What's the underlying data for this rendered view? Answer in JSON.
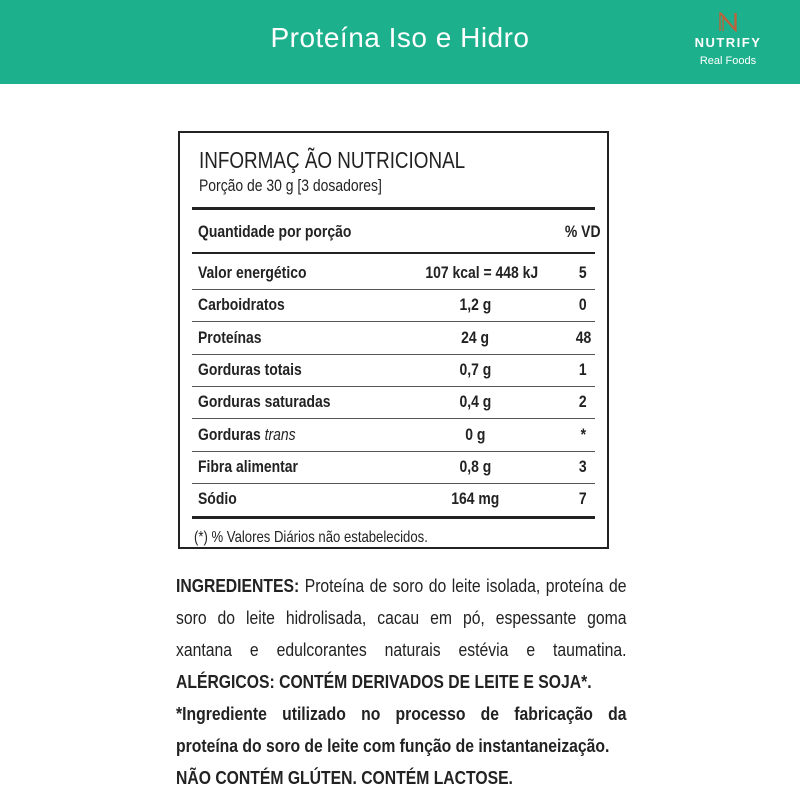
{
  "header": {
    "title": "Proteína Iso e Hidro",
    "brand": "NUTRIFY",
    "tagline": "Real Foods",
    "color": "#1db08c"
  },
  "table": {
    "title": "INFORMAÇ  ÃO NUTRICIONAL",
    "serving": "Porção de 30 g  [3 dosadores]",
    "col_header": "Quantidade por porção",
    "vd_header": "% VD",
    "rows": [
      {
        "label": "Valor energético",
        "amount": "107 kcal = 448 kJ",
        "vd": "5"
      },
      {
        "label": "Carboidratos",
        "amount": "1,2 g",
        "vd": "0"
      },
      {
        "label": "Proteínas",
        "amount": "24 g",
        "vd": "48"
      },
      {
        "label": "Gorduras totais",
        "amount": "0,7 g",
        "vd": "1"
      },
      {
        "label": "Gorduras saturadas",
        "amount": "0,4 g",
        "vd": "2"
      },
      {
        "label": "Gorduras",
        "label_italic": "trans",
        "amount": "0 g",
        "vd": "*"
      },
      {
        "label": "Fibra alimentar",
        "amount": "0,8 g",
        "vd": "3"
      },
      {
        "label": "Sódio",
        "amount": "164 mg",
        "vd": "7"
      }
    ],
    "footnote": "(*) % Valores Diários não estabelecidos."
  },
  "ingredients": {
    "label": "INGREDIENTES:",
    "text": " Proteína de soro do leite isolada, proteína de soro do leite hidrolisada, cacau em pó, espessante goma xantana e edulcorantes naturais estévia e taumatina. ",
    "allergens": "ALÉRGICOS: CONTÉM DERIVADOS DE LEITE E SOJA*.",
    "note": "*Ingrediente utilizado no processo de fabricação da proteína do soro de leite com função de instantaneização.",
    "gluten": "NÃO CONTÉM GLÚTEN. CONTÉM LACTOSE."
  }
}
